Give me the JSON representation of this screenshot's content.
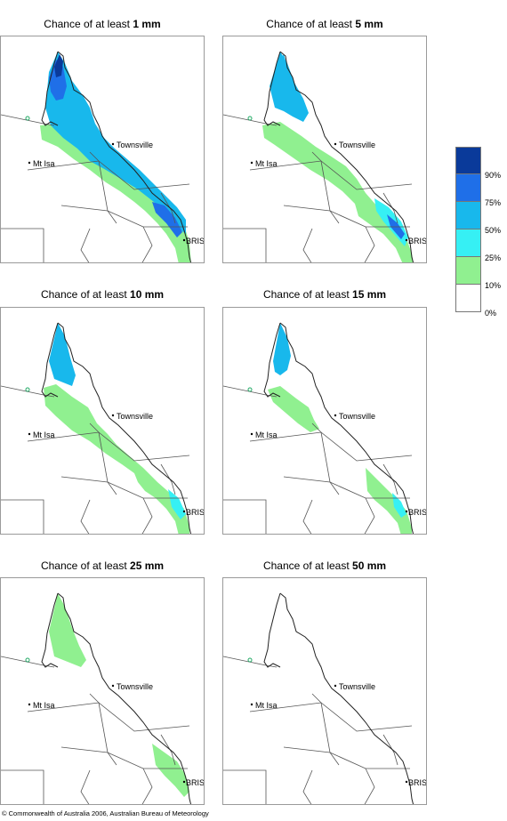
{
  "panels": [
    {
      "title_prefix": "Chance of at least ",
      "title_amount": "1 mm"
    },
    {
      "title_prefix": "Chance of at least ",
      "title_amount": "5 mm"
    },
    {
      "title_prefix": "Chance of at least ",
      "title_amount": "10 mm"
    },
    {
      "title_prefix": "Chance of at least ",
      "title_amount": "15 mm"
    },
    {
      "title_prefix": "Chance of at least ",
      "title_amount": "25 mm"
    },
    {
      "title_prefix": "Chance of at least ",
      "title_amount": "50 mm"
    }
  ],
  "places": {
    "townsville": "Townsville",
    "mt_isa": "Mt Isa",
    "brisbane": "BRIS"
  },
  "legend": {
    "labels": [
      "90%",
      "75%",
      "50%",
      "25%",
      "10%",
      "0%"
    ],
    "colors": [
      "#0a3a9a",
      "#1f6fe8",
      "#18b8ec",
      "#36f0f4",
      "#90f090",
      "#ffffff"
    ]
  },
  "copyright": "© Commonwealth of Australia 2006, Australian Bureau of Meteorology"
}
